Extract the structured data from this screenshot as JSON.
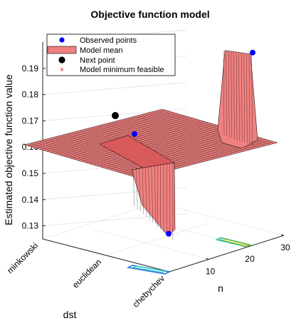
{
  "chart_data": {
    "type": "surface3d",
    "title": "Objective function model",
    "xlabel": "n",
    "ylabel": "dst",
    "zlabel": "Estimated objective function value",
    "x_ticks": [
      "10",
      "20",
      "30"
    ],
    "y_ticks": [
      "minkowski",
      "euclidean",
      "chebychev"
    ],
    "z_ticks": [
      "0.13",
      "0.14",
      "0.15",
      "0.16",
      "0.17",
      "0.18",
      "0.19"
    ],
    "zlim": [
      0.125,
      0.2
    ],
    "grid": true,
    "legend_position": "top-left",
    "legend": [
      {
        "label": "Observed points",
        "marker": "dot",
        "color": "#0000ff"
      },
      {
        "label": "Model mean",
        "marker": "patch",
        "color": "#f08080"
      },
      {
        "label": "Next point",
        "marker": "dot",
        "color": "#000000"
      },
      {
        "label": "Model minimum feasible",
        "marker": "star",
        "color": "#ff0000"
      }
    ],
    "surface": {
      "base_value": 0.164,
      "color": "#f08080",
      "edge_color": "#000000",
      "features": [
        {
          "description": "ridge near chebychev, low n",
          "dst": "chebychev",
          "n": 1,
          "min_value": 0.127
        },
        {
          "description": "peak near minkowski, high n",
          "dst": "minkowski",
          "n": 27,
          "max_value": 0.196
        }
      ]
    },
    "observed_points": [
      {
        "dst": "minkowski",
        "n": 27,
        "value": 0.196
      },
      {
        "dst": "euclidean",
        "n": 10,
        "value": 0.165
      },
      {
        "dst": "chebychev",
        "n": 1,
        "value": 0.127
      }
    ],
    "next_point": {
      "dst": "minkowski",
      "n": 5,
      "value": 0.172
    }
  }
}
